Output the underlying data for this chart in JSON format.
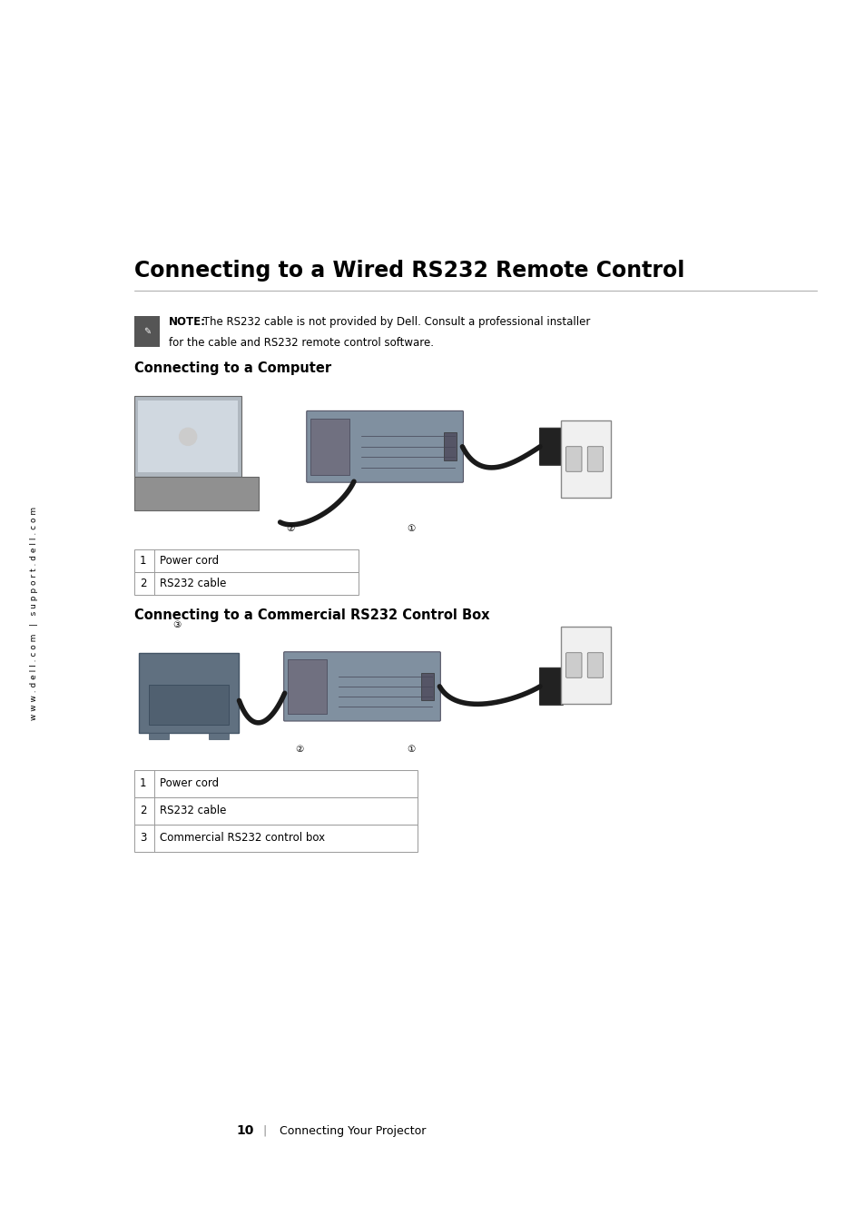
{
  "bg_color": "#ffffff",
  "page_width": 9.54,
  "page_height": 13.5,
  "main_title": "Connecting to a Wired RS232 Remote Control",
  "note_bold": "NOTE:",
  "note_line1": " The RS232 cable is not provided by Dell. Consult a professional installer",
  "note_line2": "for the cable and RS232 remote control software.",
  "section1_title": "Connecting to a Computer",
  "section2_title": "Connecting to a Commercial RS232 Control Box",
  "table1_rows": [
    [
      "1",
      "Power cord"
    ],
    [
      "2",
      "RS232 cable"
    ]
  ],
  "table2_rows": [
    [
      "1",
      "Power cord"
    ],
    [
      "2",
      "RS232 cable"
    ],
    [
      "3",
      "Commercial RS232 control box"
    ]
  ],
  "sidebar_text": "w w w . d e l l . c o m   |   s u p p o r t . d e l l . c o m",
  "footer_page": "10",
  "footer_text": "Connecting Your Projector",
  "main_title_fontsize": 17,
  "section_title_fontsize": 10.5,
  "body_fontsize": 8.5,
  "note_fontsize": 8.5,
  "footer_fontsize": 9,
  "sidebar_fontsize": 6.5
}
